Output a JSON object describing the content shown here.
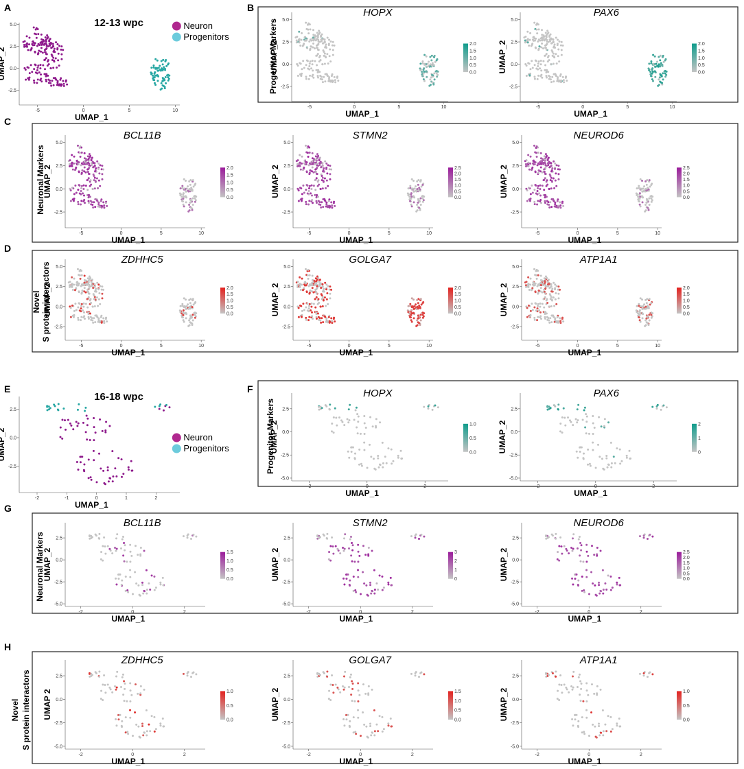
{
  "colors": {
    "neuron": "#8e1a8c",
    "progenitor": "#27a7a3",
    "neuron_legend": "#b0288f",
    "progenitor_legend": "#6ccbdc",
    "low": "#c4c4c4",
    "progenitor_high": "#109c8c",
    "neuron_high": "#9b1c9b",
    "interactor_high": "#e3221f"
  },
  "panel_labels": {
    "A": "A",
    "B": "B",
    "C": "C",
    "D": "D",
    "E": "E",
    "F": "F",
    "G": "G",
    "H": "H"
  },
  "row_labels": {
    "progenitor": "Progenitor Markers",
    "neuronal": "Neuronal Markers",
    "novel_line1": "Novel",
    "novel_line2": "S protein interactors"
  },
  "chart_data": [
    {
      "id": "A",
      "type": "scatter",
      "title": "12-13 wpc",
      "xlabel": "UMAP_1",
      "ylabel": "UMAP_2",
      "xticks": [
        "-5",
        "0",
        "5",
        "10"
      ],
      "yticks": [
        "5.0",
        "2.5",
        "0.0",
        "-2.5"
      ],
      "xlim": [
        -7,
        10.5
      ],
      "ylim": [
        -4.2,
        5.2
      ],
      "legend": [
        "Neuron",
        "Progenitors"
      ],
      "series": [
        {
          "name": "Neuron",
          "clusters": [
            {
              "cx": -5.0,
              "cy": 2.8,
              "rx": 1.6,
              "ry": 1.3,
              "n": 70
            },
            {
              "cx": -3.3,
              "cy": 1.5,
              "rx": 1.2,
              "ry": 1.6,
              "n": 50
            },
            {
              "cx": -5.2,
              "cy": -0.6,
              "rx": 1.4,
              "ry": 1.2,
              "n": 40
            },
            {
              "cx": -2.8,
              "cy": -1.6,
              "rx": 1.4,
              "ry": 0.5,
              "n": 30
            },
            {
              "cx": -5.2,
              "cy": 4.6,
              "rx": 0.4,
              "ry": 0.2,
              "n": 4
            }
          ]
        },
        {
          "name": "Progenitors",
          "clusters": [
            {
              "cx": 8.4,
              "cy": -0.6,
              "rx": 1.1,
              "ry": 1.9,
              "n": 75
            }
          ]
        }
      ]
    },
    {
      "id": "B1",
      "gene": "HOPX",
      "group": "12-13",
      "high": "progenitor_high",
      "expr": "progenitor_dim",
      "cbticks": [
        "2.0",
        "1.5",
        "1.0",
        "0.5",
        "0.0"
      ],
      "xlabel": "UMAP_1",
      "ylabel": "UMAP_2",
      "xticks": [
        "-5",
        "0",
        "5",
        "10"
      ],
      "yticks": [
        "5.0",
        "2.5",
        "0.0",
        "-2.5"
      ]
    },
    {
      "id": "B2",
      "gene": "PAX6",
      "group": "12-13",
      "high": "progenitor_high",
      "expr": "progenitor",
      "cbticks": [
        "2.0",
        "1.5",
        "1.0",
        "0.5",
        "0.0"
      ],
      "xlabel": "UMAP_1",
      "ylabel": "UMAP_2",
      "xticks": [
        "-5",
        "0",
        "5",
        "10"
      ],
      "yticks": [
        "5.0",
        "2.5",
        "0.0",
        "-2.5"
      ]
    },
    {
      "id": "C1",
      "gene": "BCL11B",
      "group": "12-13",
      "high": "neuron_high",
      "expr": "neuron",
      "cbticks": [
        "2.0",
        "1.5",
        "1.0",
        "0.5",
        "0.0"
      ],
      "xlabel": "UMAP_1",
      "ylabel": "UMAP_2",
      "xticks": [
        "-5",
        "0",
        "5",
        "10"
      ],
      "yticks": [
        "5.0",
        "2.5",
        "0.0",
        "-2.5"
      ]
    },
    {
      "id": "C2",
      "gene": "STMN2",
      "group": "12-13",
      "high": "neuron_high",
      "expr": "neuron",
      "cbticks": [
        "2.5",
        "2.0",
        "1.5",
        "1.0",
        "0.5",
        "0.0"
      ],
      "xlabel": "UMAP_1",
      "ylabel": "UMAP_2",
      "xticks": [
        "-5",
        "0",
        "5",
        "10"
      ],
      "yticks": [
        "5.0",
        "2.5",
        "0.0",
        "-2.5"
      ]
    },
    {
      "id": "C3",
      "gene": "NEUROD6",
      "group": "12-13",
      "high": "neuron_high",
      "expr": "neuron",
      "cbticks": [
        "2.5",
        "2.0",
        "1.5",
        "1.0",
        "0.5",
        "0.0"
      ],
      "xlabel": "UMAP_1",
      "ylabel": "UMAP_2",
      "xticks": [
        "-5",
        "0",
        "5",
        "10"
      ],
      "yticks": [
        "5.0",
        "2.5",
        "0.0",
        "-2.5"
      ]
    },
    {
      "id": "D1",
      "gene": "ZDHHC5",
      "group": "12-13",
      "high": "interactor_high",
      "expr": "sparse",
      "cbticks": [
        "2.0",
        "1.5",
        "1.0",
        "0.5",
        "0.0"
      ],
      "xlabel": "UMAP_1",
      "ylabel": "UMAP_2",
      "xticks": [
        "-5",
        "0",
        "5",
        "10"
      ],
      "yticks": [
        "5.0",
        "2.5",
        "0.0",
        "-2.5"
      ]
    },
    {
      "id": "D2",
      "gene": "GOLGA7",
      "group": "12-13",
      "high": "interactor_high",
      "expr": "broad",
      "cbticks": [
        "2.0",
        "1.5",
        "1.0",
        "0.5",
        "0.0"
      ],
      "xlabel": "UMAP_1",
      "ylabel": "UMAP_2",
      "xticks": [
        "-5",
        "0",
        "5",
        "10"
      ],
      "yticks": [
        "5.0",
        "2.5",
        "0.0",
        "-2.5"
      ]
    },
    {
      "id": "D3",
      "gene": "ATP1A1",
      "group": "12-13",
      "high": "interactor_high",
      "expr": "medium",
      "cbticks": [
        "2.0",
        "1.5",
        "1.0",
        "0.5",
        "0.0"
      ],
      "xlabel": "UMAP_1",
      "ylabel": "UMAP_2",
      "xticks": [
        "-5",
        "0",
        "5",
        "10"
      ],
      "yticks": [
        "5.0",
        "2.5",
        "0.0",
        "-2.5"
      ]
    },
    {
      "id": "E",
      "type": "scatter",
      "title": "16-18 wpc",
      "xlabel": "UMAP_1",
      "ylabel": "UMAP_2",
      "xticks": [
        "-2",
        "-1",
        "0",
        "1",
        "2"
      ],
      "yticks": [
        "2.5",
        "0.0",
        "-2.5"
      ],
      "xlim": [
        -2.6,
        2.8
      ],
      "ylim": [
        -4.8,
        3.6
      ],
      "legend": [
        "Neuron",
        "Progenitors"
      ],
      "series": [
        {
          "name": "Neuron",
          "clusters": [
            {
              "cx": -0.5,
              "cy": 0.8,
              "rx": 1.0,
              "ry": 1.2,
              "n": 30
            },
            {
              "cx": 0.3,
              "cy": -2.5,
              "rx": 1.0,
              "ry": 1.6,
              "n": 40
            },
            {
              "cx": 2.2,
              "cy": 2.6,
              "rx": 0.3,
              "ry": 0.4,
              "n": 4
            }
          ]
        },
        {
          "name": "Progenitors",
          "clusters": [
            {
              "cx": -1.0,
              "cy": 2.6,
              "rx": 0.9,
              "ry": 0.4,
              "n": 16
            },
            {
              "cx": 2.0,
              "cy": 2.8,
              "rx": 0.4,
              "ry": 0.2,
              "n": 4
            }
          ]
        }
      ]
    },
    {
      "id": "F1",
      "gene": "HOPX",
      "group": "16-18",
      "high": "progenitor_high",
      "expr": "progenitor_few",
      "cbticks": [
        "1.0",
        "0.5",
        "0.0"
      ],
      "xlabel": "UMAP_1",
      "ylabel": "UMAP_2",
      "xticks": [
        "-2",
        "0",
        "2"
      ],
      "yticks": [
        "2.5",
        "0.0",
        "-2.5",
        "-5.0"
      ]
    },
    {
      "id": "F2",
      "gene": "PAX6",
      "group": "16-18",
      "high": "progenitor_high",
      "expr": "progenitor",
      "cbticks": [
        "2",
        "1",
        "0"
      ],
      "xlabel": "UMAP_1",
      "ylabel": "UMAP_2",
      "xticks": [
        "-2",
        "0",
        "2"
      ],
      "yticks": [
        "2.5",
        "0.0",
        "-2.5",
        "-5.0"
      ]
    },
    {
      "id": "G1",
      "gene": "BCL11B",
      "group": "16-18",
      "high": "neuron_high",
      "expr": "neuron_some",
      "cbticks": [
        "1.5",
        "1.0",
        "0.5",
        "0.0"
      ],
      "xlabel": "UMAP_1",
      "ylabel": "UMAP_2",
      "xticks": [
        "-2",
        "0",
        "2"
      ],
      "yticks": [
        "2.5",
        "0.0",
        "-2.5",
        "-5.0"
      ]
    },
    {
      "id": "G2",
      "gene": "STMN2",
      "group": "16-18",
      "high": "neuron_high",
      "expr": "neuron",
      "cbticks": [
        "3",
        "2",
        "1",
        "0"
      ],
      "xlabel": "UMAP_1",
      "ylabel": "UMAP_2",
      "xticks": [
        "-2",
        "0",
        "2"
      ],
      "yticks": [
        "2.5",
        "0.0",
        "-2.5",
        "-5.0"
      ]
    },
    {
      "id": "G3",
      "gene": "NEUROD6",
      "group": "16-18",
      "high": "neuron_high",
      "expr": "neuron",
      "cbticks": [
        "2.5",
        "2.0",
        "1.5",
        "1.0",
        "0.5",
        "0.0"
      ],
      "xlabel": "UMAP_1",
      "ylabel": "UMAP_2",
      "xticks": [
        "-2",
        "0",
        "2"
      ],
      "yticks": [
        "2.5",
        "0.0",
        "-2.5",
        "-5.0"
      ]
    },
    {
      "id": "H1",
      "gene": "ZDHHC5",
      "group": "16-18",
      "high": "interactor_high",
      "expr": "sparse",
      "cbticks": [
        "1.0",
        "0.5",
        "0.0"
      ],
      "xlabel": "UMAP_1",
      "ylabel": "UMAP 2",
      "xticks": [
        "-2",
        "0",
        "2"
      ],
      "yticks": [
        "2.5",
        "0.0",
        "-2.5",
        "-5.0"
      ]
    },
    {
      "id": "H2",
      "gene": "GOLGA7",
      "group": "16-18",
      "high": "interactor_high",
      "expr": "medium",
      "cbticks": [
        "1.5",
        "1.0",
        "0.5",
        "0.0"
      ],
      "xlabel": "UMAP_1",
      "ylabel": "UMAP_2",
      "xticks": [
        "-2",
        "0",
        "2"
      ],
      "yticks": [
        "2.5",
        "0.0",
        "-2.5",
        "-5.0"
      ]
    },
    {
      "id": "H3",
      "gene": "ATP1A1",
      "group": "16-18",
      "high": "interactor_high",
      "expr": "sparse",
      "cbticks": [
        "1.0",
        "0.5",
        "0.0"
      ],
      "xlabel": "UMAP_1",
      "ylabel": "UMAP_2",
      "xticks": [
        "-2",
        "0",
        "2"
      ],
      "yticks": [
        "2.5",
        "0.0",
        "-2.5",
        "-5.0"
      ]
    }
  ]
}
